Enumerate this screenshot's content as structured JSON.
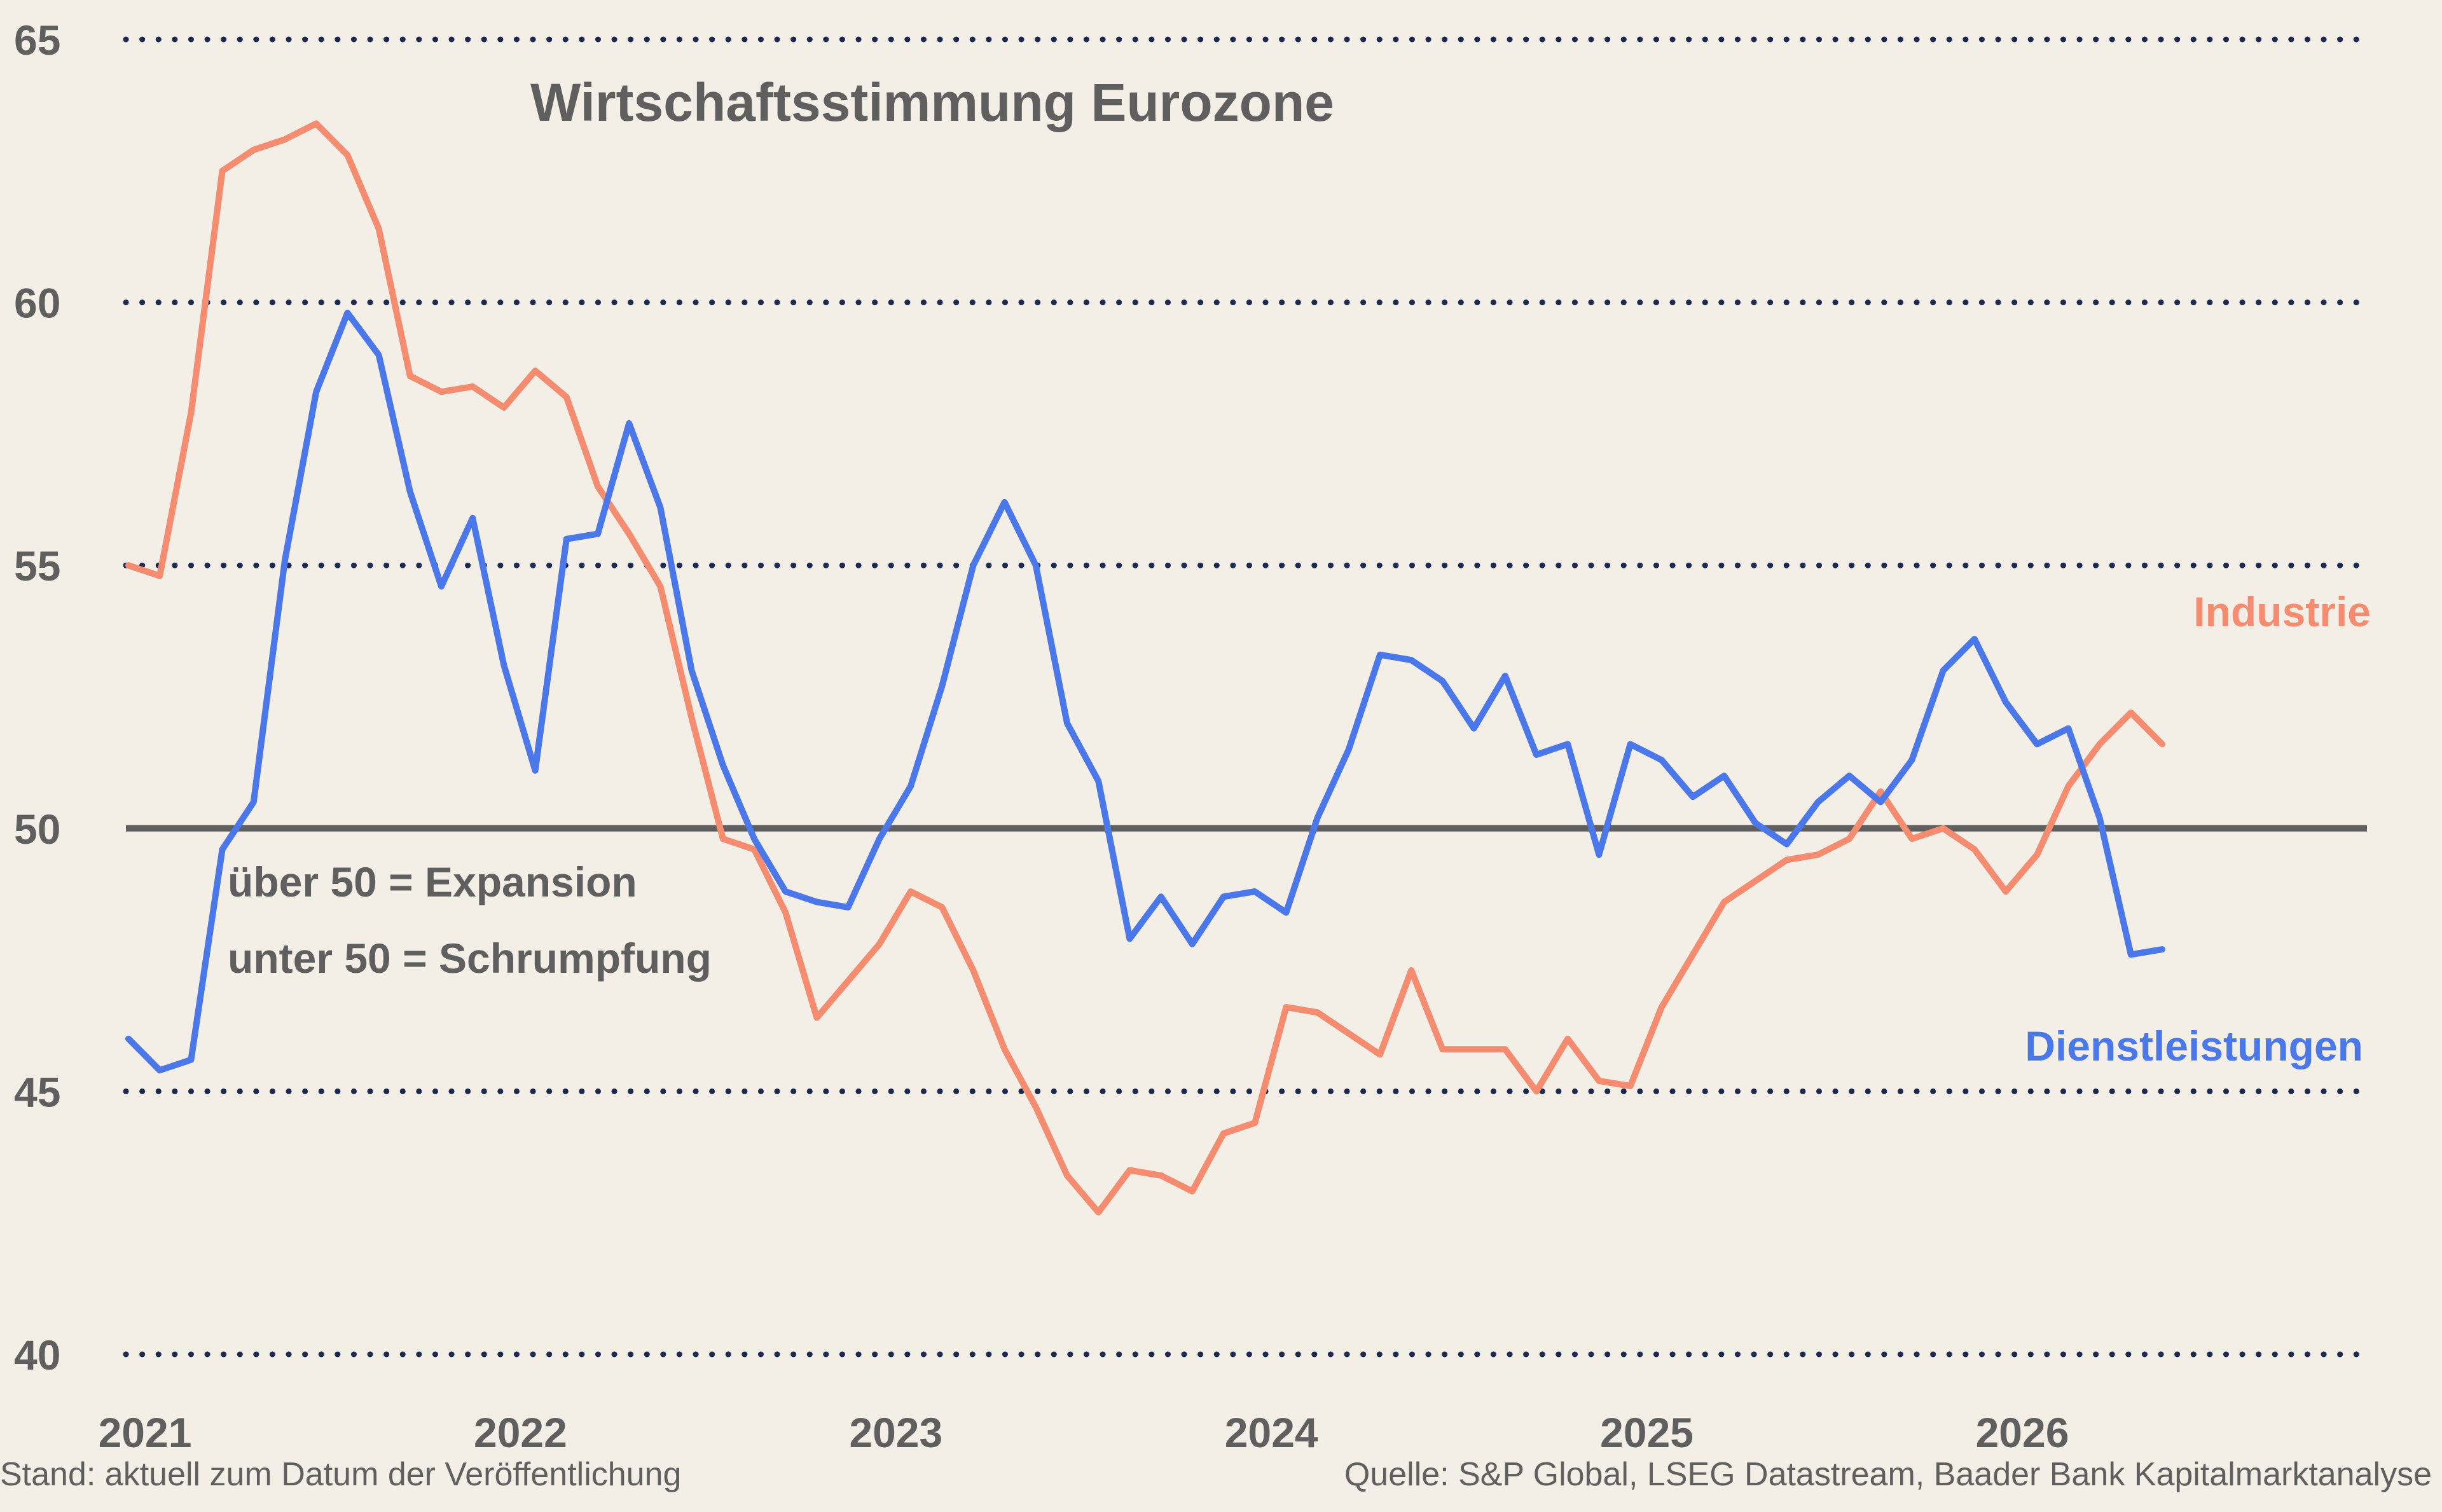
{
  "colors": {
    "background": "#f3efe6",
    "industrie": "#f58b6f",
    "dienstleistungen": "#4a78ea",
    "gridline": "#1c2a4f",
    "baseline": "#5f5f5f",
    "text": "#5f5f5f"
  },
  "notes": {
    "line1": "über 50 = Expansion",
    "line2": "unter 50 = Schrumpfung"
  },
  "footer": {
    "left": "Stand: aktuell zum Datum der Veröffentlichung",
    "right": "Quelle: S&P Global, LSEG Datastream, Baader Bank Kapitalmarktanalyse"
  },
  "chart_data": {
    "type": "line",
    "title": "Wirtschaftsstimmung Eurozone",
    "xlabel": "",
    "ylabel": "",
    "x_start": "2021-01",
    "x_tick_labels": [
      "2021",
      "2022",
      "2023",
      "2024",
      "2025",
      "2026"
    ],
    "xlim": [
      "2021-01",
      "2026-12"
    ],
    "ylim": [
      40,
      65
    ],
    "y_ticks": [
      40,
      45,
      50,
      55,
      60,
      65
    ],
    "grid": "dotted horizontal at 40, 45, 55, 60, 65; solid line at 50",
    "series_label_placement": "right",
    "series": [
      {
        "name": "Industrie",
        "color": "#f58b6f",
        "values": [
          55.0,
          54.8,
          57.9,
          62.5,
          62.9,
          63.1,
          63.4,
          62.8,
          61.4,
          58.6,
          58.3,
          58.4,
          58.0,
          58.7,
          58.2,
          56.5,
          55.6,
          54.6,
          52.1,
          49.8,
          49.6,
          48.4,
          46.4,
          47.1,
          47.8,
          48.8,
          48.5,
          47.3,
          45.8,
          44.7,
          43.4,
          42.7,
          43.5,
          43.4,
          43.1,
          44.2,
          44.4,
          46.6,
          46.5,
          46.1,
          45.7,
          47.3,
          45.8,
          45.8,
          45.8,
          45.0,
          46.0,
          45.2,
          45.1,
          46.6,
          47.6,
          48.6,
          49.0,
          49.4,
          49.5,
          49.8,
          50.7,
          49.8,
          50.0,
          49.6,
          48.8,
          49.5,
          50.8,
          51.6,
          52.2,
          51.6
        ],
        "x_values": [
          "2021-01",
          "2021-02",
          "2021-03",
          "2021-04",
          "2021-05",
          "2021-06",
          "2021-07",
          "2021-08",
          "2021-09",
          "2021-10",
          "2021-11",
          "2021-12",
          "2022-01",
          "2022-02",
          "2022-03",
          "2022-04",
          "2022-05",
          "2022-06",
          "2022-07",
          "2022-08",
          "2022-09",
          "2022-10",
          "2022-11",
          "2022-12",
          "2023-01",
          "2023-02",
          "2023-03",
          "2023-04",
          "2023-05",
          "2023-06",
          "2023-07",
          "2023-08",
          "2023-09",
          "2023-10",
          "2023-11",
          "2023-12",
          "2024-01",
          "2024-02",
          "2024-03",
          "2024-04",
          "2024-05",
          "2024-06",
          "2024-07",
          "2024-08",
          "2024-09",
          "2024-10",
          "2024-11",
          "2024-12",
          "2025-01",
          "2025-02",
          "2025-03",
          "2025-04",
          "2025-05",
          "2025-06",
          "2025-07",
          "2025-08",
          "2025-09",
          "2025-10",
          "2025-11",
          "2025-12",
          "2026-01",
          "2026-02",
          "2026-03",
          "2026-04",
          "2026-05",
          "2026-06"
        ]
      },
      {
        "name": "Dienstleistungen",
        "color": "#4a78ea",
        "values": [
          46.0,
          45.4,
          45.6,
          49.6,
          50.5,
          55.1,
          58.3,
          59.8,
          59.0,
          56.4,
          54.6,
          55.9,
          53.1,
          51.1,
          55.5,
          55.6,
          57.7,
          56.1,
          53.0,
          51.2,
          49.8,
          48.8,
          48.6,
          48.5,
          49.8,
          50.8,
          52.7,
          55.0,
          56.2,
          55.0,
          52.0,
          50.9,
          47.9,
          48.7,
          47.8,
          48.7,
          48.8,
          48.4,
          50.2,
          51.5,
          53.3,
          53.2,
          52.8,
          51.9,
          52.9,
          51.4,
          51.6,
          49.5,
          51.6,
          51.3,
          50.6,
          51.0,
          50.1,
          49.7,
          50.5,
          51.0,
          50.5,
          51.3,
          53.0,
          53.6,
          52.4,
          51.6,
          51.9,
          50.2,
          47.6,
          47.7
        ],
        "x_values": [
          "2021-01",
          "2021-02",
          "2021-03",
          "2021-04",
          "2021-05",
          "2021-06",
          "2021-07",
          "2021-08",
          "2021-09",
          "2021-10",
          "2021-11",
          "2021-12",
          "2022-01",
          "2022-02",
          "2022-03",
          "2022-04",
          "2022-05",
          "2022-06",
          "2022-07",
          "2022-08",
          "2022-09",
          "2022-10",
          "2022-11",
          "2022-12",
          "2023-01",
          "2023-02",
          "2023-03",
          "2023-04",
          "2023-05",
          "2023-06",
          "2023-07",
          "2023-08",
          "2023-09",
          "2023-10",
          "2023-11",
          "2023-12",
          "2024-01",
          "2024-02",
          "2024-03",
          "2024-04",
          "2024-05",
          "2024-06",
          "2024-07",
          "2024-08",
          "2024-09",
          "2024-10",
          "2024-11",
          "2024-12",
          "2025-01",
          "2025-02",
          "2025-03",
          "2025-04",
          "2025-05",
          "2025-06",
          "2025-07",
          "2025-08",
          "2025-09",
          "2025-10",
          "2025-11",
          "2025-12",
          "2026-01",
          "2026-02",
          "2026-03",
          "2026-04",
          "2026-05",
          "2026-06"
        ]
      }
    ]
  }
}
